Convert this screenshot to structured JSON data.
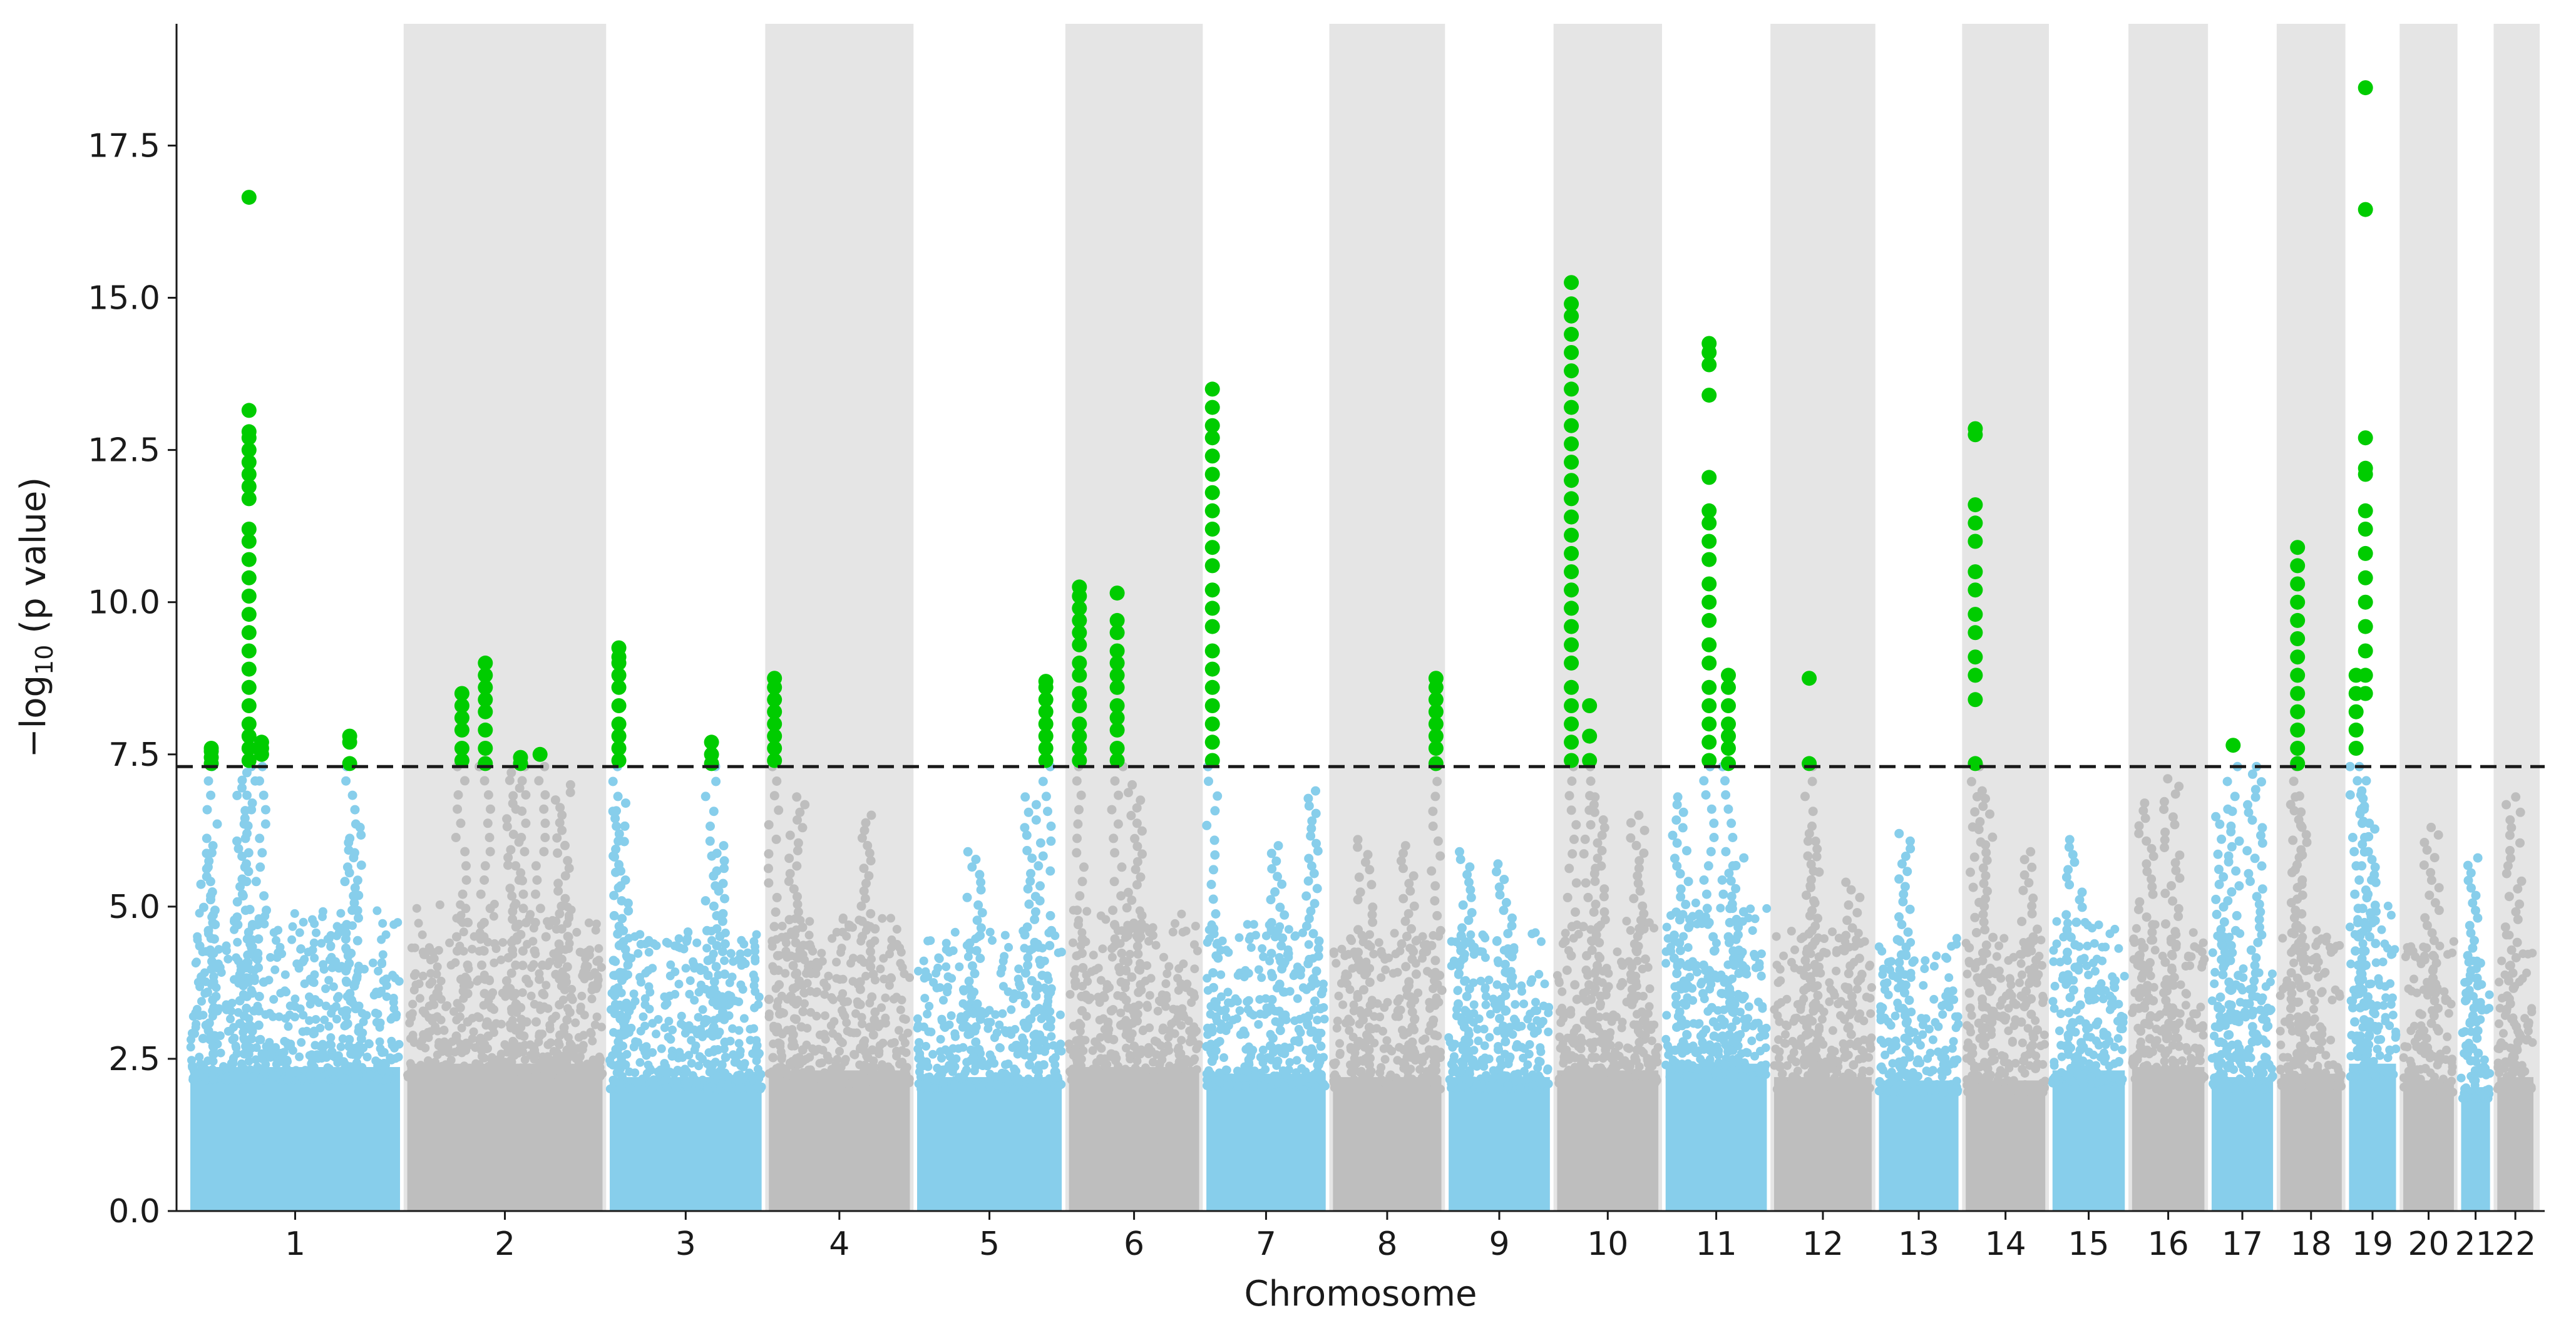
{
  "chart_data": {
    "type": "scatter",
    "subtype": "manhattan",
    "title": "",
    "xlabel": "Chromosome",
    "ylabel_prefix": "−log",
    "ylabel_subscript": "10",
    "ylabel_suffix": " (p value)",
    "ylim": [
      0,
      19.5
    ],
    "yticks": [
      0.0,
      2.5,
      5.0,
      7.5,
      10.0,
      12.5,
      15.0,
      17.5
    ],
    "ytick_labels": [
      "0.0",
      "2.5",
      "5.0",
      "7.5",
      "10.0",
      "12.5",
      "15.0",
      "17.5"
    ],
    "significance_threshold": 7.3,
    "grid": false,
    "colors": {
      "odd_chromosome": "#87ceeb",
      "even_chromosome": "#bebebe",
      "significant": "#00cc00",
      "band": "#e5e5e5",
      "threshold_line": "#1a1a1a"
    },
    "chromosomes": [
      {
        "label": "1",
        "start": 0,
        "end": 290,
        "bulk_max": 4.3
      },
      {
        "label": "2",
        "start": 300,
        "end": 570,
        "bulk_max": 4.4
      },
      {
        "label": "3",
        "start": 580,
        "end": 790,
        "bulk_max": 4.0
      },
      {
        "label": "4",
        "start": 800,
        "end": 995,
        "bulk_max": 4.2
      },
      {
        "label": "5",
        "start": 1005,
        "end": 1205,
        "bulk_max": 4.0
      },
      {
        "label": "6",
        "start": 1215,
        "end": 1395,
        "bulk_max": 4.3
      },
      {
        "label": "7",
        "start": 1405,
        "end": 1570,
        "bulk_max": 4.1
      },
      {
        "label": "8",
        "start": 1580,
        "end": 1730,
        "bulk_max": 4.0
      },
      {
        "label": "9",
        "start": 1740,
        "end": 1880,
        "bulk_max": 4.0
      },
      {
        "label": "10",
        "start": 1890,
        "end": 2030,
        "bulk_max": 4.2
      },
      {
        "label": "11",
        "start": 2040,
        "end": 2180,
        "bulk_max": 4.4
      },
      {
        "label": "12",
        "start": 2190,
        "end": 2325,
        "bulk_max": 4.0
      },
      {
        "label": "13",
        "start": 2335,
        "end": 2445,
        "bulk_max": 3.9
      },
      {
        "label": "14",
        "start": 2455,
        "end": 2565,
        "bulk_max": 3.9
      },
      {
        "label": "15",
        "start": 2575,
        "end": 2675,
        "bulk_max": 4.2
      },
      {
        "label": "16",
        "start": 2685,
        "end": 2785,
        "bulk_max": 4.3
      },
      {
        "label": "17",
        "start": 2795,
        "end": 2880,
        "bulk_max": 4.0
      },
      {
        "label": "18",
        "start": 2890,
        "end": 2975,
        "bulk_max": 4.1
      },
      {
        "label": "19",
        "start": 2985,
        "end": 3050,
        "bulk_max": 4.4
      },
      {
        "label": "20",
        "start": 3060,
        "end": 3130,
        "bulk_max": 3.9
      },
      {
        "label": "21",
        "start": 3140,
        "end": 3180,
        "bulk_max": 3.7
      },
      {
        "label": "22",
        "start": 3190,
        "end": 3240,
        "bulk_max": 4.0
      }
    ],
    "non_significant_peaks": [
      {
        "chrom": "1",
        "pos": 0.26,
        "max": 7.2
      },
      {
        "chrom": "1",
        "pos": 0.08,
        "max": 6.0
      },
      {
        "chrom": "1",
        "pos": 0.78,
        "max": 6.3
      },
      {
        "chrom": "2",
        "pos": 0.55,
        "max": 7.2
      },
      {
        "chrom": "2",
        "pos": 0.8,
        "max": 7.0
      },
      {
        "chrom": "3",
        "pos": 0.08,
        "max": 6.7
      },
      {
        "chrom": "3",
        "pos": 0.72,
        "max": 6.0
      },
      {
        "chrom": "4",
        "pos": 0.2,
        "max": 6.8
      },
      {
        "chrom": "4",
        "pos": 0.7,
        "max": 6.5
      },
      {
        "chrom": "5",
        "pos": 0.8,
        "max": 6.8
      },
      {
        "chrom": "5",
        "pos": 0.4,
        "max": 5.9
      },
      {
        "chrom": "6",
        "pos": 0.5,
        "max": 7.0
      },
      {
        "chrom": "7",
        "pos": 0.6,
        "max": 6.0
      },
      {
        "chrom": "7",
        "pos": 0.9,
        "max": 6.9
      },
      {
        "chrom": "8",
        "pos": 0.3,
        "max": 6.1
      },
      {
        "chrom": "8",
        "pos": 0.7,
        "max": 6.0
      },
      {
        "chrom": "9",
        "pos": 0.15,
        "max": 5.9
      },
      {
        "chrom": "9",
        "pos": 0.55,
        "max": 5.7
      },
      {
        "chrom": "10",
        "pos": 0.4,
        "max": 6.8
      },
      {
        "chrom": "10",
        "pos": 0.8,
        "max": 6.5
      },
      {
        "chrom": "11",
        "pos": 0.15,
        "max": 6.8
      },
      {
        "chrom": "11",
        "pos": 0.7,
        "max": 5.8
      },
      {
        "chrom": "12",
        "pos": 0.4,
        "max": 6.2
      },
      {
        "chrom": "12",
        "pos": 0.8,
        "max": 5.4
      },
      {
        "chrom": "13",
        "pos": 0.3,
        "max": 6.2
      },
      {
        "chrom": "14",
        "pos": 0.25,
        "max": 6.9
      },
      {
        "chrom": "14",
        "pos": 0.8,
        "max": 5.9
      },
      {
        "chrom": "15",
        "pos": 0.3,
        "max": 6.1
      },
      {
        "chrom": "16",
        "pos": 0.2,
        "max": 6.7
      },
      {
        "chrom": "16",
        "pos": 0.55,
        "max": 7.1
      },
      {
        "chrom": "17",
        "pos": 0.2,
        "max": 6.6
      },
      {
        "chrom": "17",
        "pos": 0.7,
        "max": 7.3
      },
      {
        "chrom": "18",
        "pos": 0.3,
        "max": 6.8
      },
      {
        "chrom": "19",
        "pos": 0.4,
        "max": 6.9
      },
      {
        "chrom": "20",
        "pos": 0.55,
        "max": 6.3
      },
      {
        "chrom": "21",
        "pos": 0.4,
        "max": 5.8
      },
      {
        "chrom": "22",
        "pos": 0.45,
        "max": 6.8
      }
    ],
    "significant_loci": [
      {
        "chrom": "1",
        "pos": 0.1,
        "values": [
          7.35,
          7.45,
          7.55,
          7.6
        ]
      },
      {
        "chrom": "1",
        "pos": 0.28,
        "values": [
          7.4,
          7.6,
          7.8,
          8.0,
          8.3,
          8.6,
          8.9,
          9.2,
          9.5,
          9.8,
          10.1,
          10.4,
          10.7,
          11.0,
          11.2,
          11.7,
          11.9,
          12.1,
          12.3,
          12.5,
          12.7,
          12.8,
          13.15,
          16.65
        ]
      },
      {
        "chrom": "1",
        "pos": 0.34,
        "values": [
          7.5,
          7.6,
          7.7
        ]
      },
      {
        "chrom": "1",
        "pos": 0.76,
        "values": [
          7.35,
          7.7,
          7.8
        ]
      },
      {
        "chrom": "2",
        "pos": 0.28,
        "values": [
          7.4,
          7.6,
          7.9,
          8.1,
          8.3,
          8.5
        ]
      },
      {
        "chrom": "2",
        "pos": 0.4,
        "values": [
          7.35,
          7.6,
          7.9,
          8.2,
          8.4,
          8.6,
          8.8,
          9.0
        ]
      },
      {
        "chrom": "2",
        "pos": 0.58,
        "values": [
          7.35,
          7.45
        ]
      },
      {
        "chrom": "2",
        "pos": 0.68,
        "values": [
          7.5
        ]
      },
      {
        "chrom": "3",
        "pos": 0.06,
        "values": [
          7.4,
          7.6,
          7.8,
          8.0,
          8.3,
          8.6,
          8.8,
          9.0,
          9.1,
          9.25
        ]
      },
      {
        "chrom": "3",
        "pos": 0.67,
        "values": [
          7.35,
          7.5,
          7.7
        ]
      },
      {
        "chrom": "4",
        "pos": 0.04,
        "values": [
          7.4,
          7.6,
          7.8,
          8.0,
          8.2,
          8.4,
          8.6,
          8.75
        ]
      },
      {
        "chrom": "5",
        "pos": 0.89,
        "values": [
          7.4,
          7.6,
          7.8,
          8.0,
          8.2,
          8.4,
          8.6,
          8.7
        ]
      },
      {
        "chrom": "6",
        "pos": 0.08,
        "values": [
          7.4,
          7.6,
          7.8,
          8.0,
          8.3,
          8.5,
          8.8,
          9.0,
          9.3,
          9.5,
          9.7,
          9.9,
          10.1,
          10.25
        ]
      },
      {
        "chrom": "6",
        "pos": 0.37,
        "values": [
          7.4,
          7.6,
          7.9,
          8.1,
          8.3,
          8.6,
          8.8,
          9.0,
          9.2,
          9.5,
          9.7,
          10.15
        ]
      },
      {
        "chrom": "7",
        "pos": 0.05,
        "values": [
          7.4,
          7.7,
          8.0,
          8.3,
          8.6,
          8.9,
          9.2,
          9.6,
          9.9,
          10.2,
          10.6,
          10.9,
          11.2,
          11.5,
          11.8,
          12.1,
          12.4,
          12.7,
          12.9,
          13.2,
          13.5
        ]
      },
      {
        "chrom": "8",
        "pos": 0.95,
        "values": [
          7.35,
          7.6,
          7.8,
          8.0,
          8.2,
          8.4,
          8.6,
          8.75
        ]
      },
      {
        "chrom": "10",
        "pos": 0.14,
        "values": [
          7.4,
          7.7,
          8.0,
          8.3,
          8.6,
          9.0,
          9.3,
          9.6,
          9.9,
          10.2,
          10.5,
          10.8,
          11.1,
          11.4,
          11.7,
          12.0,
          12.3,
          12.6,
          12.9,
          13.2,
          13.5,
          13.8,
          14.1,
          14.4,
          14.7,
          14.9,
          15.25
        ]
      },
      {
        "chrom": "10",
        "pos": 0.32,
        "values": [
          7.4,
          7.8,
          8.3
        ]
      },
      {
        "chrom": "11",
        "pos": 0.43,
        "values": [
          7.4,
          7.7,
          8.0,
          8.3,
          8.6,
          9.0,
          9.3,
          9.7,
          10.0,
          10.3,
          10.7,
          11.0,
          11.3,
          11.5,
          12.05,
          13.4,
          13.9,
          14.1,
          14.25
        ]
      },
      {
        "chrom": "11",
        "pos": 0.62,
        "values": [
          7.35,
          7.6,
          7.8,
          8.0,
          8.3,
          8.6,
          8.8
        ]
      },
      {
        "chrom": "12",
        "pos": 0.36,
        "values": [
          7.35,
          8.75
        ]
      },
      {
        "chrom": "14",
        "pos": 0.12,
        "values": [
          7.35,
          8.4,
          8.8,
          9.1,
          9.5,
          9.8,
          10.2,
          10.5,
          11.0,
          11.3,
          11.6,
          12.75,
          12.85
        ]
      },
      {
        "chrom": "17",
        "pos": 0.35,
        "values": [
          7.65
        ]
      },
      {
        "chrom": "18",
        "pos": 0.28,
        "values": [
          7.35,
          7.6,
          7.9,
          8.2,
          8.5,
          8.8,
          9.1,
          9.4,
          9.7,
          10.0,
          10.3,
          10.6,
          10.9
        ]
      },
      {
        "chrom": "19",
        "pos": 0.15,
        "values": [
          7.6,
          7.9,
          8.2,
          8.5,
          8.8
        ]
      },
      {
        "chrom": "19",
        "pos": 0.35,
        "values": [
          8.5,
          8.8,
          9.2,
          9.6,
          10.0,
          10.4,
          10.8,
          11.2,
          11.5,
          12.1,
          12.2,
          12.7,
          16.45,
          18.45
        ]
      }
    ]
  }
}
